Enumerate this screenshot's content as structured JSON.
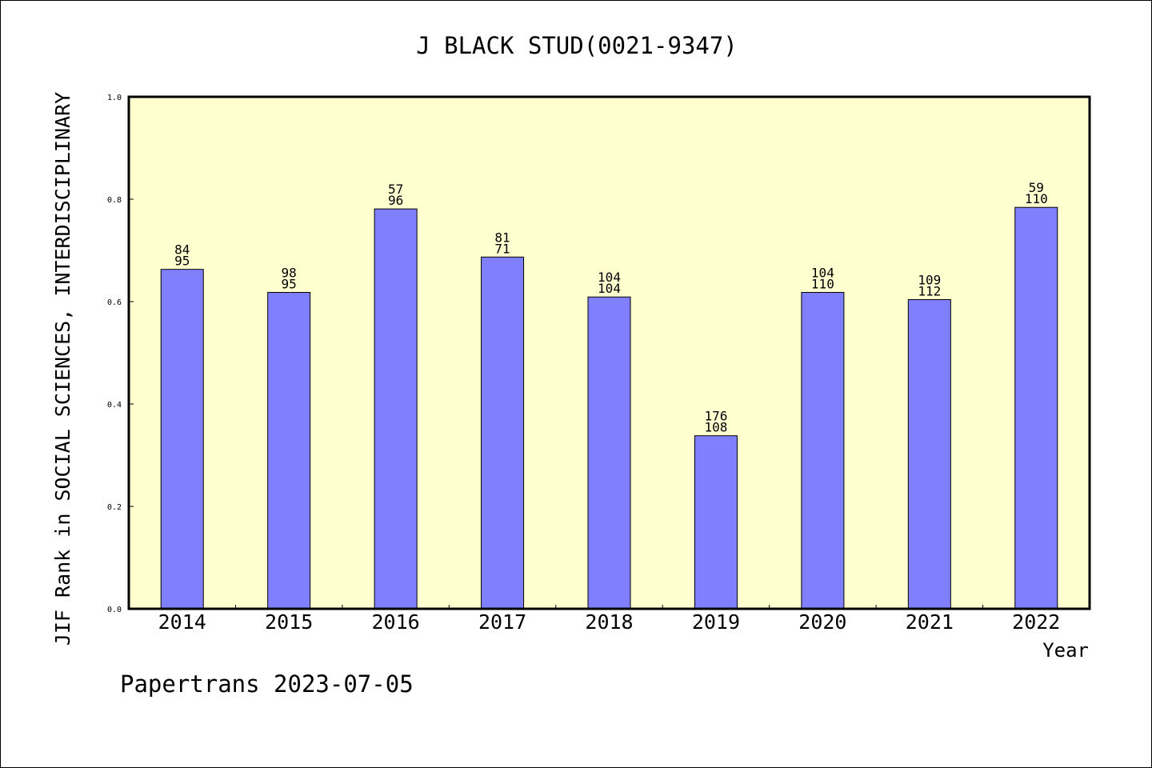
{
  "chart_data": {
    "type": "bar",
    "title": "J BLACK STUD(0021-9347)",
    "xlabel": "Year",
    "ylabel": "JIF Rank in SOCIAL SCIENCES, INTERDISCIPLINARY",
    "ylim": [
      0,
      1.0
    ],
    "yticks": [
      "0.0",
      "0.2",
      "0.4",
      "0.6",
      "0.8",
      "1.0"
    ],
    "categories": [
      "2014",
      "2015",
      "2016",
      "2017",
      "2018",
      "2019",
      "2020",
      "2021",
      "2022"
    ],
    "values": [
      0.663,
      0.618,
      0.781,
      0.687,
      0.609,
      0.338,
      0.618,
      0.604,
      0.784
    ],
    "labels_top": [
      "84",
      "98",
      "57",
      "81",
      "104",
      "176",
      "104",
      "109",
      "59"
    ],
    "labels_bottom": [
      "95",
      "95",
      "96",
      "71",
      "104",
      "108",
      "110",
      "112",
      "110"
    ],
    "grid": false,
    "colors": {
      "bar": "#8080ff",
      "plot_background": "#ffffd0",
      "axis": "#000000"
    }
  },
  "footer": {
    "credit": "Papertrans 2023-07-05"
  }
}
